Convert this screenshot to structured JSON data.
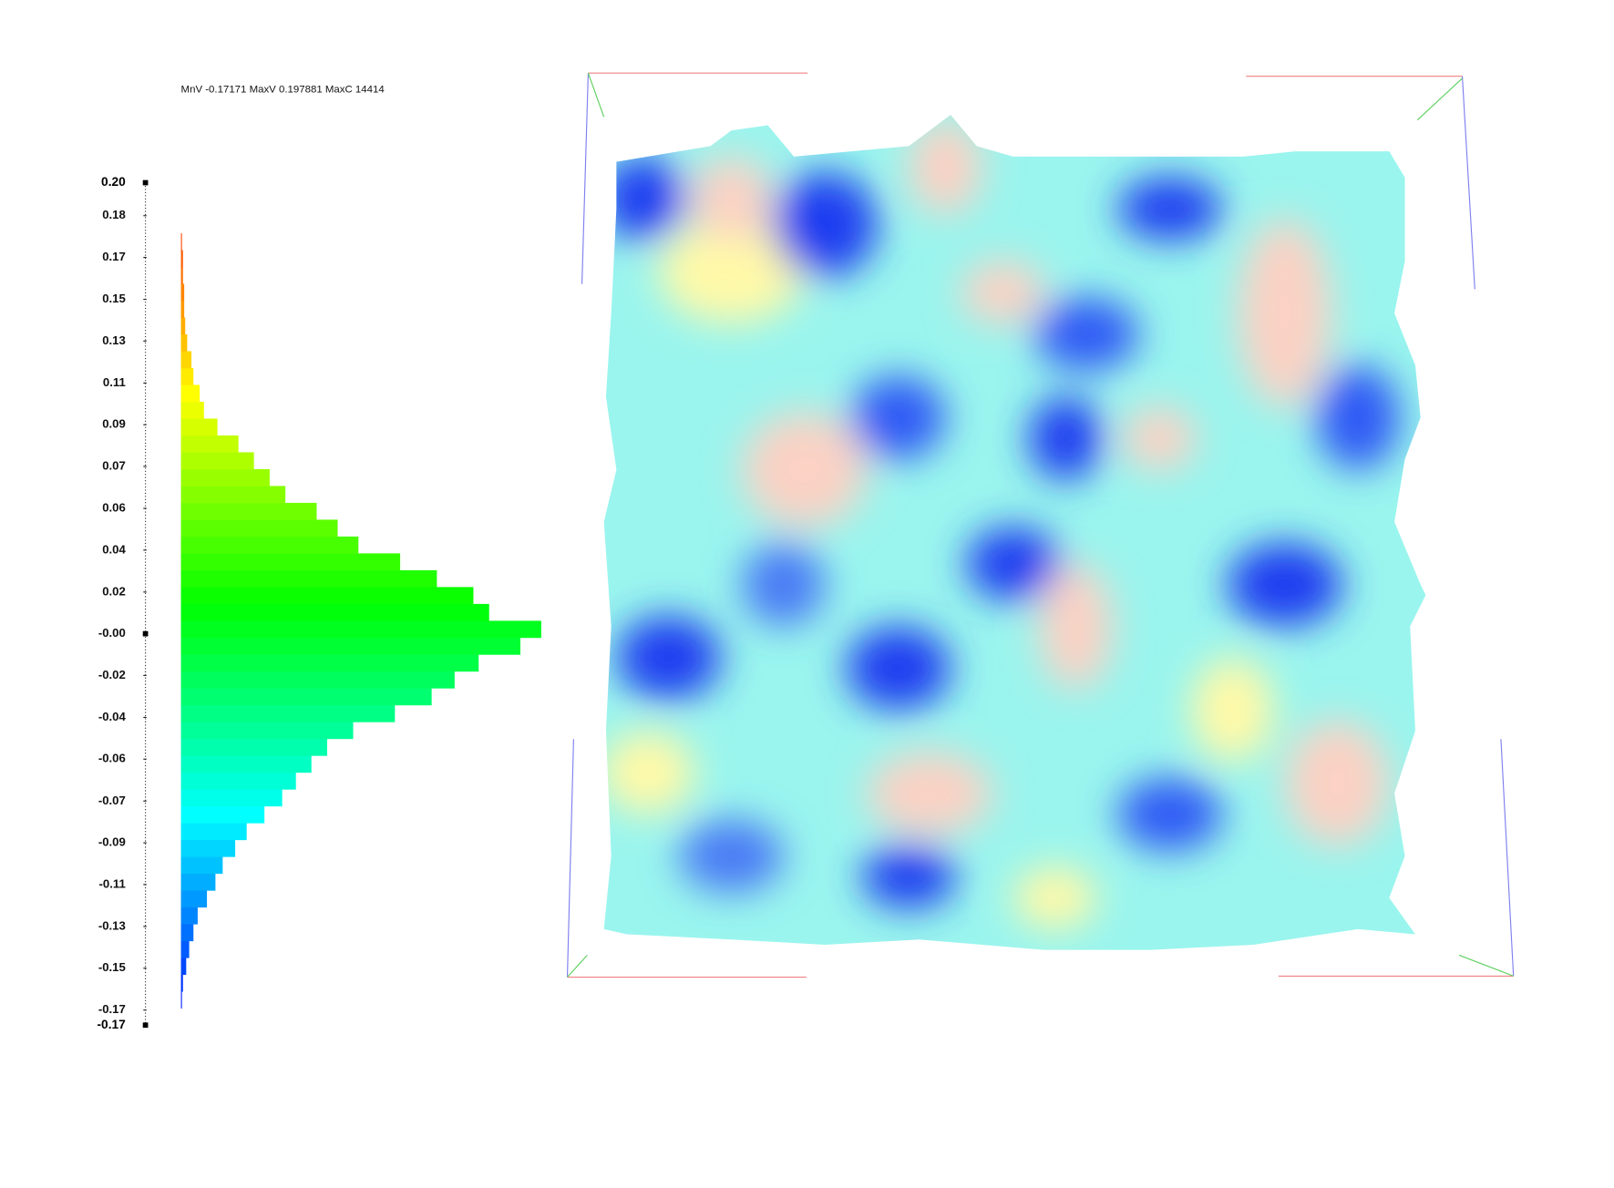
{
  "header": {
    "stats": "MnV -0.17171 MaxV 0.197881 MaxC 14414"
  },
  "chart_data": {
    "type": "histogram",
    "bins": [
      -0.17171,
      -0.16432,
      -0.15693,
      -0.14953,
      -0.14214,
      -0.13475,
      -0.12736,
      -0.11997,
      -0.11258,
      -0.10518,
      -0.09779,
      -0.0904,
      -0.08301,
      -0.07562,
      -0.06822,
      -0.06083,
      -0.05344,
      -0.04605,
      -0.03866,
      -0.03127,
      -0.02387,
      -0.01648,
      -0.00909,
      -0.0017,
      0.00569,
      0.01308,
      0.02048,
      0.02787,
      0.03526,
      0.04265,
      0.05004,
      0.05743,
      0.06483,
      0.07222,
      0.07961,
      0.087,
      0.09439,
      0.10179,
      0.10918,
      0.11657,
      0.12396,
      0.13135,
      0.13874,
      0.14614,
      0.15353,
      0.16092,
      0.16831,
      0.1757,
      0.1831,
      0.19049,
      0.197881
    ],
    "values": [
      0,
      40,
      80,
      210,
      330,
      500,
      670,
      1040,
      1380,
      1670,
      2170,
      2630,
      3340,
      4050,
      4600,
      5220,
      5850,
      6890,
      8560,
      10030,
      10950,
      11910,
      13580,
      14414,
      12330,
      11700,
      10240,
      8770,
      7100,
      6270,
      5430,
      4180,
      3550,
      2920,
      2300,
      1460,
      920,
      750,
      500,
      420,
      250,
      170,
      130,
      130,
      80,
      80,
      40,
      0,
      0,
      0
    ],
    "ylim": [
      -0.17171,
      0.197881
    ],
    "xlim": [
      0,
      14414
    ],
    "yticks": [
      {
        "value": 0.1834,
        "label": "0.18"
      },
      {
        "value": 0.1651,
        "label": "0.17"
      },
      {
        "value": 0.1467,
        "label": "0.15"
      },
      {
        "value": 0.1284,
        "label": "0.13"
      },
      {
        "value": 0.11,
        "label": "0.11"
      },
      {
        "value": 0.0917,
        "label": "0.09"
      },
      {
        "value": 0.0734,
        "label": "0.07"
      },
      {
        "value": 0.055,
        "label": "0.06"
      },
      {
        "value": 0.0367,
        "label": "0.04"
      },
      {
        "value": 0.0183,
        "label": "0.02"
      },
      {
        "value": 0,
        "label": "-0.00"
      },
      {
        "value": -0.0183,
        "label": "-0.02"
      },
      {
        "value": -0.0367,
        "label": "-0.04"
      },
      {
        "value": -0.055,
        "label": "-0.06"
      },
      {
        "value": -0.0734,
        "label": "-0.07"
      },
      {
        "value": -0.0917,
        "label": "-0.09"
      },
      {
        "value": -0.11,
        "label": "-0.11"
      },
      {
        "value": -0.1284,
        "label": "-0.13"
      },
      {
        "value": -0.1467,
        "label": "-0.15"
      },
      {
        "value": -0.1651,
        "label": "-0.17"
      }
    ],
    "yticks_bold": [
      {
        "value": 0.197881,
        "label": "0.20"
      },
      {
        "value": -0.17171,
        "label": "-0.17"
      }
    ]
  }
}
